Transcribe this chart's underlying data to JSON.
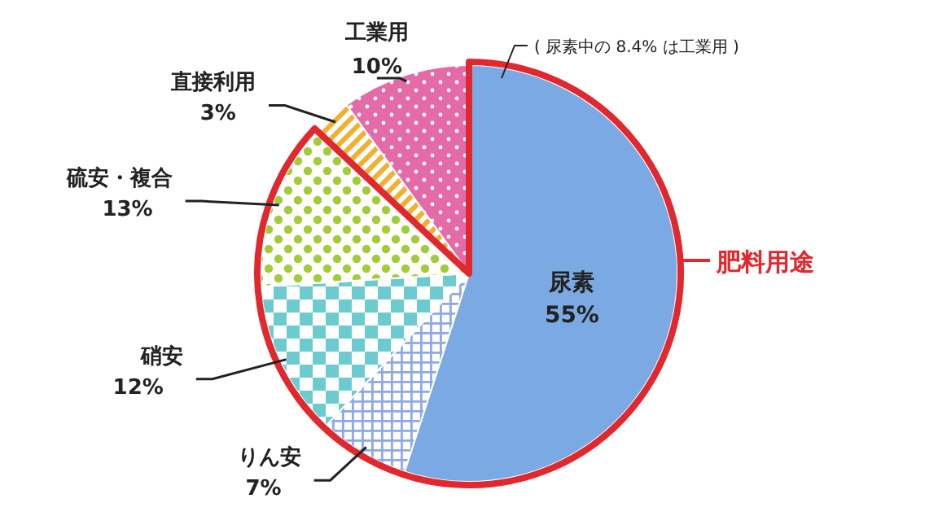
{
  "chart_data": {
    "type": "pie",
    "categories": [
      "尿素",
      "りん安",
      "硝安",
      "硫安・複合",
      "直接利用",
      "工業用"
    ],
    "values": [
      55,
      7,
      12,
      13,
      3,
      10
    ],
    "value_labels": [
      "55%",
      "7%",
      "12%",
      "13%",
      "3%",
      "10%"
    ],
    "colors": [
      "#7aa9e3",
      "#8fa9e6",
      "#6ccbcf",
      "#a3cc3a",
      "#f0b030",
      "#e46aa8"
    ],
    "legend": false,
    "annotations": [
      "( 尿素中の 8.4% は工業用 )",
      "肥料用途"
    ]
  }
}
